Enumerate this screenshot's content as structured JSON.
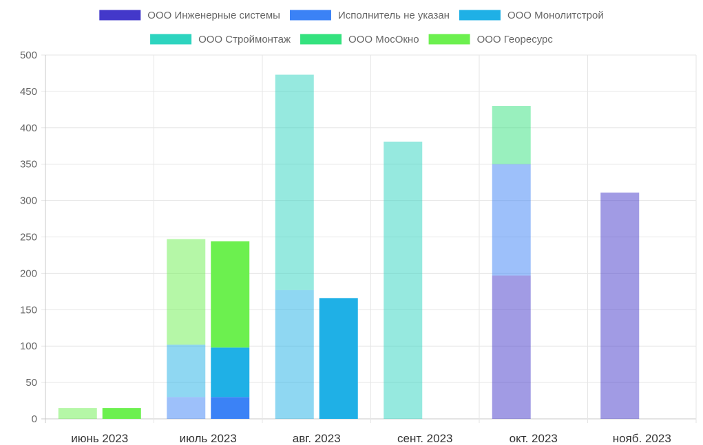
{
  "chart_data": {
    "type": "bar",
    "stacked": true,
    "title": "",
    "xlabel": "",
    "ylabel": "",
    "ylim": [
      0,
      500
    ],
    "yticks": [
      0,
      50,
      100,
      150,
      200,
      250,
      300,
      350,
      400,
      450,
      500
    ],
    "grid": true,
    "legend_position": "top",
    "categories": [
      "июнь 2023",
      "июль 2023",
      "авг. 2023",
      "сент. 2023",
      "окт. 2023",
      "нояб. 2023"
    ],
    "series": [
      {
        "name": "ООО Инженерные системы",
        "color": "#4338ca",
        "values": [
          [
            0,
            0
          ],
          [
            0,
            0
          ],
          [
            0,
            0
          ],
          [
            0,
            0
          ],
          [
            197,
            0
          ],
          [
            311,
            0
          ]
        ]
      },
      {
        "name": "Исполнитель не указан",
        "color": "#3b82f6",
        "values": [
          [
            0,
            0
          ],
          [
            30,
            30
          ],
          [
            0,
            0
          ],
          [
            0,
            0
          ],
          [
            153,
            0
          ],
          [
            0,
            0
          ]
        ]
      },
      {
        "name": "ООО Монолитстрой",
        "color": "#1fb0e6",
        "values": [
          [
            0,
            0
          ],
          [
            72,
            68
          ],
          [
            177,
            166
          ],
          [
            0,
            0
          ],
          [
            0,
            0
          ],
          [
            0,
            0
          ]
        ]
      },
      {
        "name": "ООО Строймонтаж",
        "color": "#2dd4bf",
        "values": [
          [
            0,
            0
          ],
          [
            0,
            0
          ],
          [
            296,
            0
          ],
          [
            381,
            0
          ],
          [
            0,
            0
          ],
          [
            0,
            0
          ]
        ]
      },
      {
        "name": "ООО МосОкно",
        "color": "#34e27e",
        "values": [
          [
            0,
            0
          ],
          [
            0,
            0
          ],
          [
            0,
            0
          ],
          [
            0,
            0
          ],
          [
            80,
            0
          ],
          [
            0,
            0
          ]
        ]
      },
      {
        "name": "ООО Георесурс",
        "color": "#6cf04f",
        "values": [
          [
            15,
            15
          ],
          [
            145,
            146
          ],
          [
            0,
            0
          ],
          [
            0,
            0
          ],
          [
            0,
            0
          ],
          [
            0,
            0
          ]
        ]
      }
    ],
    "bar_stack_opacity": [
      0.5,
      1
    ]
  }
}
